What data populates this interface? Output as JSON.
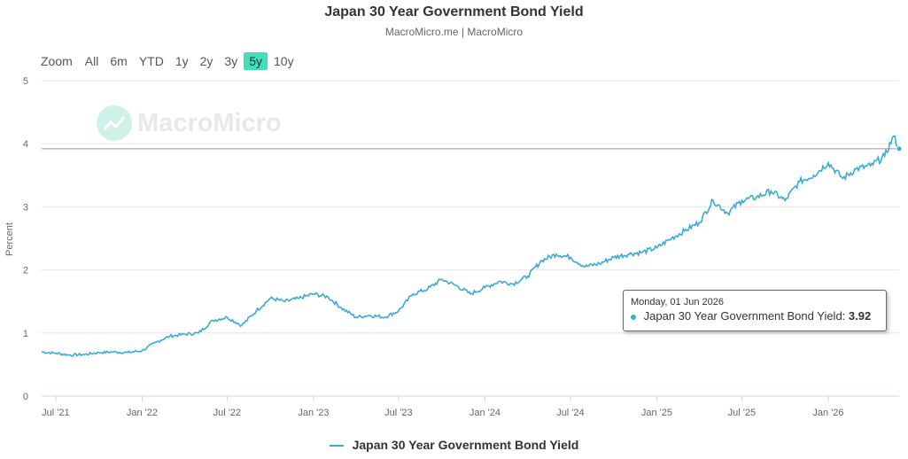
{
  "title": "Japan 30 Year Government Bond Yield",
  "subtitle": "MacroMicro.me | MacroMicro",
  "watermark": "MacroMicro",
  "zoom": {
    "label": "Zoom",
    "options": [
      "All",
      "6m",
      "YTD",
      "1y",
      "2y",
      "3y",
      "5y",
      "10y"
    ],
    "selected": "5y"
  },
  "tooltip": {
    "date": "Monday, 01 Jun 2026",
    "series": "Japan 30 Year Government Bond Yield:",
    "value": "3.92"
  },
  "legend": {
    "label": "Japan 30 Year Government Bond Yield"
  },
  "colors": {
    "series": "#3da9d5",
    "zoom_active": "#41e0b9"
  },
  "chart_data": {
    "type": "line",
    "ylabel": "Percent",
    "ylim": [
      0,
      5
    ],
    "yticks": [
      0,
      1,
      2,
      3,
      4,
      5
    ],
    "xlim": [
      "2021-06-01",
      "2026-06-01"
    ],
    "xticks": [
      {
        "date": "2021-07-01",
        "label": "Jul '21"
      },
      {
        "date": "2022-01-01",
        "label": "Jan '22"
      },
      {
        "date": "2022-07-01",
        "label": "Jul '22"
      },
      {
        "date": "2023-01-01",
        "label": "Jan '23"
      },
      {
        "date": "2023-07-01",
        "label": "Jul '23"
      },
      {
        "date": "2024-01-01",
        "label": "Jan '24"
      },
      {
        "date": "2024-07-01",
        "label": "Jul '24"
      },
      {
        "date": "2025-01-01",
        "label": "Jan '25"
      },
      {
        "date": "2025-07-01",
        "label": "Jul '25"
      },
      {
        "date": "2026-01-01",
        "label": "Jan '26"
      }
    ],
    "grid": true,
    "series": [
      {
        "name": "Japan 30 Year Government Bond Yield",
        "points": [
          [
            "2021-06-01",
            0.7
          ],
          [
            "2021-07-01",
            0.68
          ],
          [
            "2021-08-01",
            0.65
          ],
          [
            "2021-09-01",
            0.66
          ],
          [
            "2021-10-01",
            0.69
          ],
          [
            "2021-11-01",
            0.7
          ],
          [
            "2021-12-01",
            0.69
          ],
          [
            "2022-01-01",
            0.72
          ],
          [
            "2022-02-01",
            0.86
          ],
          [
            "2022-03-01",
            0.95
          ],
          [
            "2022-04-01",
            0.98
          ],
          [
            "2022-05-01",
            1.0
          ],
          [
            "2022-06-01",
            1.2
          ],
          [
            "2022-07-01",
            1.25
          ],
          [
            "2022-08-01",
            1.12
          ],
          [
            "2022-09-01",
            1.35
          ],
          [
            "2022-10-01",
            1.55
          ],
          [
            "2022-11-01",
            1.5
          ],
          [
            "2022-12-01",
            1.55
          ],
          [
            "2023-01-01",
            1.62
          ],
          [
            "2023-02-01",
            1.57
          ],
          [
            "2023-03-01",
            1.4
          ],
          [
            "2023-04-01",
            1.25
          ],
          [
            "2023-05-01",
            1.28
          ],
          [
            "2023-06-01",
            1.25
          ],
          [
            "2023-07-01",
            1.35
          ],
          [
            "2023-08-01",
            1.62
          ],
          [
            "2023-09-01",
            1.7
          ],
          [
            "2023-10-01",
            1.85
          ],
          [
            "2023-11-01",
            1.75
          ],
          [
            "2023-12-01",
            1.62
          ],
          [
            "2024-01-01",
            1.72
          ],
          [
            "2024-02-01",
            1.82
          ],
          [
            "2024-03-01",
            1.78
          ],
          [
            "2024-04-01",
            1.9
          ],
          [
            "2024-05-01",
            2.15
          ],
          [
            "2024-06-01",
            2.25
          ],
          [
            "2024-07-01",
            2.2
          ],
          [
            "2024-08-01",
            2.05
          ],
          [
            "2024-09-01",
            2.1
          ],
          [
            "2024-10-01",
            2.2
          ],
          [
            "2024-11-01",
            2.25
          ],
          [
            "2024-12-01",
            2.28
          ],
          [
            "2025-01-01",
            2.35
          ],
          [
            "2025-02-01",
            2.5
          ],
          [
            "2025-03-01",
            2.62
          ],
          [
            "2025-04-01",
            2.75
          ],
          [
            "2025-05-01",
            3.1
          ],
          [
            "2025-06-01",
            2.9
          ],
          [
            "2025-07-01",
            3.1
          ],
          [
            "2025-08-01",
            3.15
          ],
          [
            "2025-09-01",
            3.25
          ],
          [
            "2025-10-01",
            3.1
          ],
          [
            "2025-11-01",
            3.4
          ],
          [
            "2025-12-01",
            3.5
          ],
          [
            "2026-01-01",
            3.7
          ],
          [
            "2026-02-01",
            3.45
          ],
          [
            "2026-03-01",
            3.6
          ],
          [
            "2026-04-01",
            3.65
          ],
          [
            "2026-05-01",
            3.8
          ],
          [
            "2026-05-20",
            4.12
          ],
          [
            "2026-06-01",
            3.92
          ]
        ]
      }
    ]
  }
}
